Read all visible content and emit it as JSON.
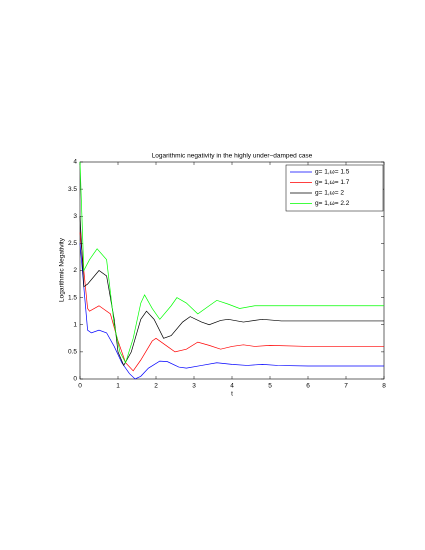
{
  "chart_data": {
    "type": "line",
    "title": "Logarithmic negativity in the highly under−damped case",
    "xlabel": "t",
    "ylabel": "Logarithmic Negativity",
    "xlim": [
      0,
      8
    ],
    "ylim": [
      0,
      4
    ],
    "xticks": [
      0,
      1,
      2,
      3,
      4,
      5,
      6,
      7,
      8
    ],
    "yticks": [
      0,
      0.5,
      1,
      1.5,
      2,
      2.5,
      3,
      3.5,
      4
    ],
    "legend": "northeast",
    "series": [
      {
        "name": "g= 1,ω= 1.5",
        "color": "#0000ff",
        "x": [
          0,
          0.2,
          0.3,
          0.5,
          0.7,
          0.9,
          1.1,
          1.3,
          1.45,
          1.6,
          1.8,
          2.1,
          2.3,
          2.6,
          2.8,
          3.2,
          3.6,
          4.0,
          4.4,
          4.8,
          5.2,
          6,
          7,
          8
        ],
        "values": [
          2.5,
          0.9,
          0.85,
          0.9,
          0.85,
          0.6,
          0.3,
          0.1,
          0,
          0.05,
          0.2,
          0.33,
          0.32,
          0.22,
          0.2,
          0.25,
          0.3,
          0.27,
          0.25,
          0.27,
          0.25,
          0.24,
          0.24,
          0.24
        ]
      },
      {
        "name": "g= 1,ω= 1.7",
        "color": "#ff0000",
        "x": [
          0,
          0.2,
          0.25,
          0.5,
          0.8,
          1.0,
          1.2,
          1.4,
          1.6,
          1.9,
          2.0,
          2.3,
          2.5,
          2.8,
          3.1,
          3.4,
          3.7,
          4.0,
          4.3,
          4.6,
          5.0,
          6,
          7,
          8
        ],
        "values": [
          2.7,
          1.3,
          1.25,
          1.35,
          1.2,
          0.7,
          0.3,
          0.15,
          0.35,
          0.7,
          0.75,
          0.6,
          0.5,
          0.55,
          0.68,
          0.62,
          0.55,
          0.6,
          0.63,
          0.6,
          0.62,
          0.6,
          0.6,
          0.6
        ]
      },
      {
        "name": "g= 1,ω= 2",
        "color": "#000000",
        "x": [
          0,
          0.1,
          0.2,
          0.5,
          0.7,
          0.9,
          1.0,
          1.15,
          1.35,
          1.6,
          1.75,
          1.95,
          2.2,
          2.4,
          2.7,
          2.9,
          3.2,
          3.4,
          3.7,
          3.9,
          4.3,
          4.8,
          5.3,
          6,
          7,
          8
        ],
        "values": [
          3.0,
          1.7,
          1.75,
          2.0,
          1.9,
          1.1,
          0.5,
          0.25,
          0.5,
          1.1,
          1.25,
          1.1,
          0.75,
          0.8,
          1.05,
          1.15,
          1.05,
          1.0,
          1.08,
          1.1,
          1.05,
          1.1,
          1.07,
          1.07,
          1.07,
          1.07
        ]
      },
      {
        "name": "g= 1,ω= 2.2",
        "color": "#00ff00",
        "x": [
          0,
          0.1,
          0.25,
          0.45,
          0.7,
          0.9,
          1.05,
          1.2,
          1.4,
          1.6,
          1.7,
          1.9,
          2.1,
          2.4,
          2.55,
          2.8,
          3.1,
          3.4,
          3.6,
          3.9,
          4.2,
          4.6,
          5.0,
          6,
          7,
          8
        ],
        "values": [
          4.0,
          2.0,
          2.2,
          2.4,
          2.2,
          1.0,
          0.5,
          0.3,
          0.75,
          1.4,
          1.55,
          1.3,
          1.1,
          1.35,
          1.5,
          1.4,
          1.2,
          1.35,
          1.45,
          1.38,
          1.3,
          1.35,
          1.35,
          1.35,
          1.35,
          1.35
        ]
      }
    ]
  }
}
